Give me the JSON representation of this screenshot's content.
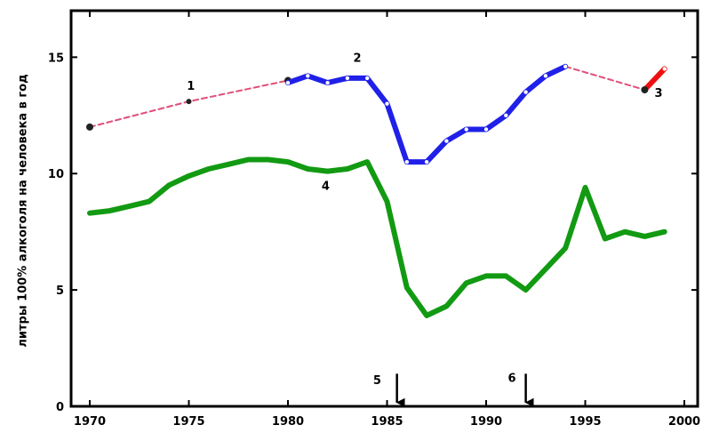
{
  "chart_data": {
    "type": "line",
    "title": "",
    "xlabel": "",
    "ylabel": "литры 100% алкоголя на человека в год",
    "xlim": [
      1970,
      2000
    ],
    "ylim": [
      0,
      17
    ],
    "xticks": [
      1970,
      1975,
      1980,
      1985,
      1990,
      1995,
      2000
    ],
    "xtick_labels": [
      "1970",
      "1975",
      "1980",
      "1985",
      "1990",
      "1995",
      "2000"
    ],
    "yticks": [
      0,
      5,
      10,
      15
    ],
    "ytick_labels": [
      "0",
      "5",
      "10",
      "15"
    ],
    "grid": false,
    "series": [
      {
        "name": "1",
        "color": "#e0507a",
        "style": "dashed",
        "markers": true,
        "x": [
          1970,
          1975,
          1980
        ],
        "y": [
          12.0,
          13.1,
          14.0
        ]
      },
      {
        "name": "2",
        "color": "#2020e8",
        "style": "solid",
        "markers": true,
        "x": [
          1980,
          1981,
          1982,
          1983,
          1984,
          1985,
          1986,
          1987,
          1988,
          1989,
          1990,
          1991,
          1992,
          1993,
          1994
        ],
        "y": [
          13.9,
          14.2,
          13.9,
          14.1,
          14.1,
          13.0,
          10.5,
          10.5,
          11.4,
          11.9,
          11.9,
          12.5,
          13.5,
          14.2,
          14.6
        ]
      },
      {
        "name": "",
        "color": "#e0507a",
        "style": "dashed",
        "markers": false,
        "x": [
          1994,
          1998
        ],
        "y": [
          14.6,
          13.6
        ]
      },
      {
        "name": "3",
        "color": "#ee1010",
        "style": "solid",
        "markers": true,
        "x": [
          1998,
          1999
        ],
        "y": [
          13.6,
          14.5
        ]
      },
      {
        "name": "4",
        "color": "#129a12",
        "style": "solid",
        "markers": false,
        "x": [
          1970,
          1971,
          1972,
          1973,
          1974,
          1975,
          1976,
          1977,
          1978,
          1979,
          1980,
          1981,
          1982,
          1983,
          1984,
          1985,
          1986,
          1987,
          1988,
          1989,
          1990,
          1991,
          1992,
          1993,
          1994,
          1995,
          1996,
          1997,
          1998,
          1999
        ],
        "y": [
          8.3,
          8.4,
          8.6,
          8.8,
          9.5,
          9.9,
          10.2,
          10.4,
          10.6,
          10.6,
          10.5,
          10.2,
          10.1,
          10.2,
          10.5,
          8.8,
          5.1,
          3.9,
          4.3,
          5.3,
          5.6,
          5.6,
          5.0,
          5.9,
          6.8,
          9.4,
          7.2,
          7.5,
          7.3,
          7.5
        ]
      }
    ],
    "annotations": [
      {
        "text": "1",
        "x": 1975.1,
        "y": 13.6
      },
      {
        "text": "2",
        "x": 1983.5,
        "y": 14.8
      },
      {
        "text": "3",
        "x": 1998.7,
        "y": 13.3
      },
      {
        "text": "4",
        "x": 1981.9,
        "y": 9.3
      },
      {
        "text": "5",
        "x": 1984.5,
        "y": 0.95
      },
      {
        "text": "6",
        "x": 1991.3,
        "y": 1.05
      }
    ],
    "arrows": [
      {
        "label": "5",
        "x": 1985.5,
        "y_from": 1.4,
        "y_to": 0.05
      },
      {
        "label": "6",
        "x": 1992.0,
        "y_from": 1.4,
        "y_to": 0.05
      }
    ]
  }
}
